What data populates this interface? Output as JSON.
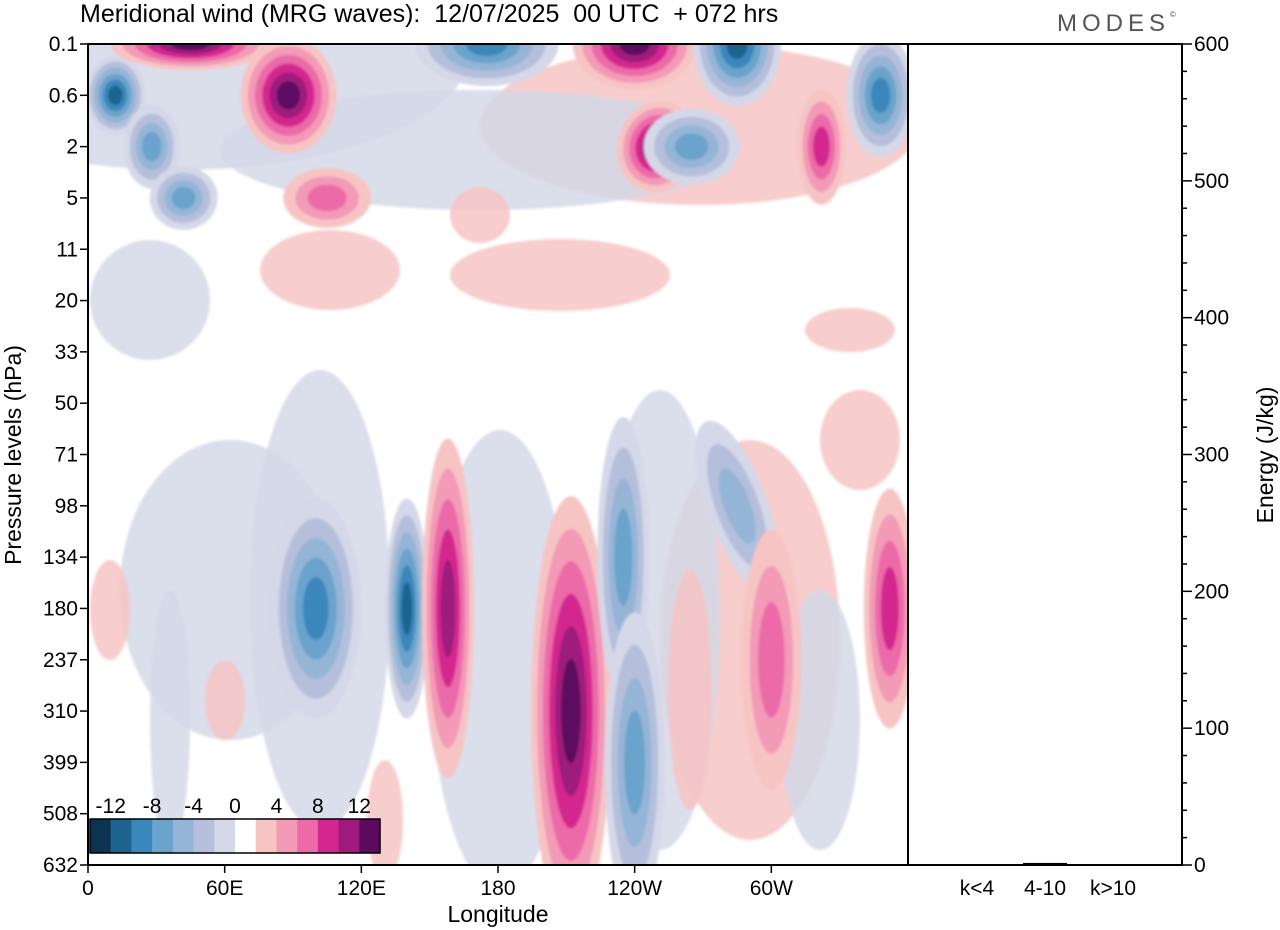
{
  "header": {
    "title": "Meridional wind (MRG waves):  12/07/2025  00 UTC  + 072 hrs",
    "brand": "MODES",
    "brand_mark": "©"
  },
  "chart_data": [
    {
      "type": "heatmap",
      "title": "Meridional wind (MRG waves):  12/07/2025  00 UTC  + 072 hrs",
      "xlabel": "Longitude",
      "ylabel": "Pressure levels (hPa)",
      "x_ticks": [
        "0",
        "60E",
        "120E",
        "180",
        "120W",
        "60W"
      ],
      "x_tick_degrees": [
        0,
        60,
        120,
        180,
        240,
        300
      ],
      "x_range_degrees": [
        0,
        360
      ],
      "y_ticks": [
        "0.1",
        "0.6",
        "2",
        "5",
        "11",
        "20",
        "33",
        "50",
        "71",
        "98",
        "134",
        "180",
        "237",
        "310",
        "399",
        "508",
        "632"
      ],
      "y_scale": "model levels, top 0.1 hPa to bottom 632 hPa",
      "colorbar": {
        "labels": [
          "-12",
          "-8",
          "-4",
          "0",
          "4",
          "8",
          "12"
        ],
        "bins": [
          "<-14",
          "-14..-12",
          "-12..-10",
          "-10..-8",
          "-8..-6",
          "-6..-4",
          "-4..-2",
          "-2..2",
          "2..4",
          "4..6",
          "6..8",
          "8..10",
          "10..12",
          ">12"
        ],
        "colors": [
          "#0c3350",
          "#1c6390",
          "#3a87bb",
          "#6aa3cc",
          "#95b5d6",
          "#b5bfdb",
          "#d5d8e8",
          "#ffffff",
          "#f7c4c4",
          "#f39ab7",
          "#ec6aa8",
          "#d3278f",
          "#9e1a7c",
          "#5c0a5e"
        ],
        "placement": "bottom-left inset"
      },
      "features": [
        {
          "lon": 12,
          "level": "0.6",
          "value": -14
        },
        {
          "lon": 28,
          "level": "2",
          "value": -8
        },
        {
          "lon": 42,
          "level": "5",
          "value": -8
        },
        {
          "lon": 45,
          "level": "0.1",
          "value": 12
        },
        {
          "lon": 88,
          "level": "0.6",
          "value": 14
        },
        {
          "lon": 105,
          "level": "5",
          "value": 6
        },
        {
          "lon": 175,
          "level": "0.1",
          "value": -10
        },
        {
          "lon": 240,
          "level": "0.1",
          "value": 14
        },
        {
          "lon": 250,
          "level": "2",
          "value": 12
        },
        {
          "lon": 265,
          "level": "2",
          "value": -8
        },
        {
          "lon": 285,
          "level": "0.1",
          "value": -14
        },
        {
          "lon": 322,
          "level": "2",
          "value": 8
        },
        {
          "lon": 348,
          "level": "0.6",
          "value": -10
        },
        {
          "lon": 100,
          "level": "180",
          "value": -10
        },
        {
          "lon": 140,
          "level": "180",
          "value": -14
        },
        {
          "lon": 158,
          "level": "180",
          "value": 10
        },
        {
          "lon": 212,
          "level": "310",
          "value": 12
        },
        {
          "lon": 235,
          "level": "134",
          "value": -8
        },
        {
          "lon": 240,
          "level": "399",
          "value": -8
        },
        {
          "lon": 285,
          "level": "98",
          "value": -6
        },
        {
          "lon": 300,
          "level": "237",
          "value": 6
        },
        {
          "lon": 352,
          "level": "180",
          "value": 8
        }
      ]
    },
    {
      "type": "bar",
      "categories": [
        "k<4",
        "4-10",
        "k>10"
      ],
      "values": [
        0.5,
        1.5,
        0.3
      ],
      "ylabel": "Energy (J/kg)",
      "ylim": [
        0,
        600
      ],
      "y_ticks": [
        "0",
        "100",
        "200",
        "300",
        "400",
        "500",
        "600"
      ]
    }
  ]
}
